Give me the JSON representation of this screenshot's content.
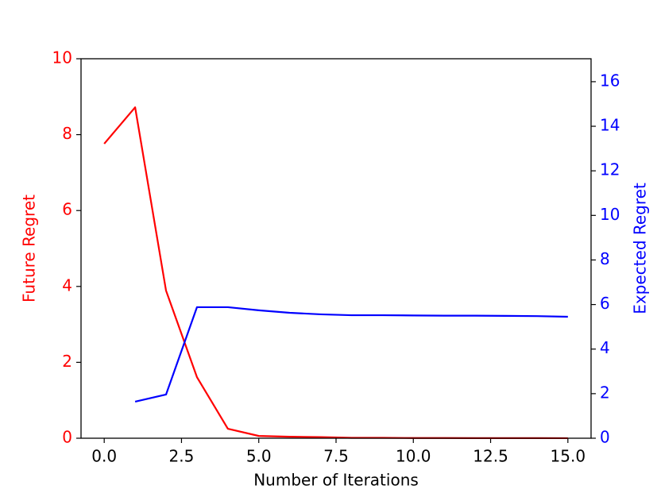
{
  "chart_data": {
    "type": "line",
    "x_label": "Number of Iterations",
    "y_label": "Future Regret",
    "y2_label": "Expected Regret",
    "x": [
      0,
      1,
      2,
      3,
      4,
      5,
      6,
      7,
      8,
      9,
      10,
      11,
      12,
      13,
      14,
      15
    ],
    "series": [
      {
        "name": "Future Regret",
        "color": "#ff0000",
        "axis": "y",
        "values": [
          7.76,
          8.72,
          3.89,
          1.61,
          0.25,
          0.06,
          0.04,
          0.03,
          0.01,
          0.01,
          0.005,
          0.005,
          0.003,
          0.002,
          0.002,
          0.001
        ]
      },
      {
        "name": "Expected Regret",
        "color": "#0000ff",
        "axis": "y2",
        "values": [
          null,
          1.64,
          1.96,
          5.88,
          5.88,
          5.74,
          5.63,
          5.56,
          5.52,
          5.52,
          5.51,
          5.5,
          5.5,
          5.49,
          5.48,
          5.45
        ]
      }
    ],
    "xlim": [
      -0.75,
      15.75
    ],
    "xticks": [
      {
        "value": 0,
        "label": "0.0"
      },
      {
        "value": 2.5,
        "label": "2.5"
      },
      {
        "value": 5,
        "label": "5.0"
      },
      {
        "value": 7.5,
        "label": "7.5"
      },
      {
        "value": 10,
        "label": "10.0"
      },
      {
        "value": 12.5,
        "label": "12.5"
      },
      {
        "value": 15,
        "label": "15.0"
      }
    ],
    "ylim": [
      0,
      10
    ],
    "yticks": [
      0,
      2,
      4,
      6,
      8,
      10
    ],
    "y2lim": [
      0,
      17.03
    ],
    "y2ticks": [
      0,
      2,
      4,
      6,
      8,
      10,
      12,
      14,
      16
    ],
    "grid": false
  }
}
